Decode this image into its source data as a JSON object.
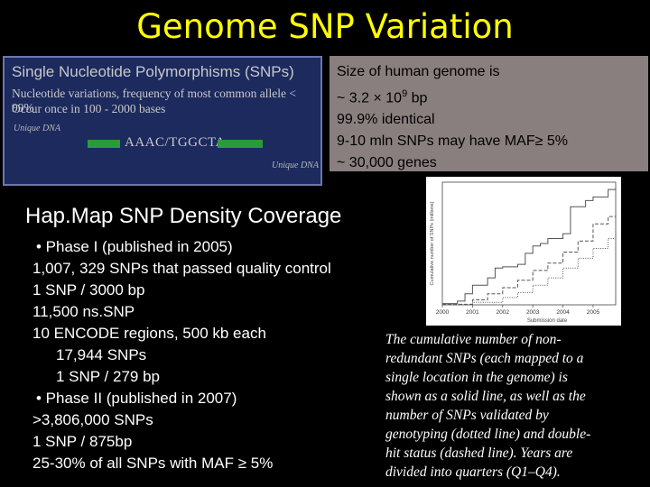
{
  "slide": {
    "title": "Genome SNP Variation",
    "snp_box": {
      "heading": "Single Nucleotide Polymorphisms (SNPs)",
      "line1": "Nucleotide variations, frequency of most common allele < 99%",
      "line2": "Occur once in 100 - 2000 bases",
      "label_left": "Unique DNA",
      "label_right": "Unique DNA",
      "sequence": "AAAC/TGGCTA",
      "bar_color_left": "#2a9a3a",
      "bar_color_right": "#2a9a3a"
    },
    "genome_info": {
      "line1": "Size of human genome is",
      "line2": "~ 3.2 × 10",
      "line2_sup": "9",
      "line2_end": " bp",
      "line3": "99.9% identical",
      "line4": "9-10 mln SNPs may have MAF≥ 5%",
      "line5": "~ 30,000 genes"
    },
    "subtitle": "Hap.Map SNP Density Coverage",
    "list": {
      "l1": "• Phase I (published in 2005)",
      "l2": "1,007, 329 SNPs that passed quality control",
      "l3": "1 SNP / 3000 bp",
      "l4": "11,500  ns.SNP",
      "l5": "10 ENCODE regions, 500 kb each",
      "l6": "17,944 SNPs",
      "l7": "1 SNP / 279 bp",
      "l8": "• Phase II (published in 2007)",
      "l9": ">3,806,000 SNPs",
      "l10": "1 SNP / 875bp",
      "l11": "25-30% of all SNPs with MAF ≥ 5%"
    },
    "chart_caption": {
      "l1": "The cumulative number of non-",
      "l2": "redundant SNPs (each mapped to a",
      "l3": "single location in the genome) is",
      "l4": "shown as a solid line, as well as the",
      "l5": "number of SNPs validated by",
      "l6": "genotyping (dotted line) and double-",
      "l7": "hit status (dashed line). Years are",
      "l8": "divided into quarters (Q1–Q4)."
    }
  },
  "chart_data": {
    "type": "line",
    "xlabel": "Submission date",
    "ylabel": "Cumulative number of SNPs (millions)",
    "x_ticks": [
      "2000",
      "2001",
      "2002",
      "2003",
      "2004",
      "2005"
    ],
    "xlim": [
      2000,
      2005.75
    ],
    "ylim": [
      0,
      10
    ],
    "series": [
      {
        "style": "solid",
        "x": [
          2000,
          2000.5,
          2000.75,
          2001,
          2001.5,
          2001.75,
          2002,
          2002.5,
          2002.75,
          2003,
          2003.25,
          2003.5,
          2004,
          2004.25,
          2004.75,
          2005,
          2005.5,
          2005.75
        ],
        "y": [
          0.1,
          0.3,
          0.9,
          1.6,
          2.2,
          3.0,
          3.1,
          3.3,
          4.2,
          4.8,
          5.0,
          5.4,
          5.8,
          8.0,
          8.5,
          8.8,
          9.4,
          9.6
        ]
      },
      {
        "style": "dashed",
        "x": [
          2000,
          2001,
          2001.5,
          2002,
          2002.5,
          2003,
          2003.5,
          2004,
          2004.5,
          2005,
          2005.5,
          2005.75
        ],
        "y": [
          0.05,
          0.4,
          0.9,
          1.4,
          2.0,
          2.8,
          3.4,
          4.3,
          5.2,
          6.6,
          7.2,
          7.4
        ]
      },
      {
        "style": "dotted",
        "x": [
          2000,
          2001,
          2002,
          2002.5,
          2003,
          2003.5,
          2004,
          2004.5,
          2005,
          2005.5,
          2005.75
        ],
        "y": [
          0.0,
          0.2,
          0.6,
          1.0,
          1.6,
          2.2,
          3.0,
          3.8,
          4.6,
          5.4,
          5.8
        ]
      }
    ]
  }
}
